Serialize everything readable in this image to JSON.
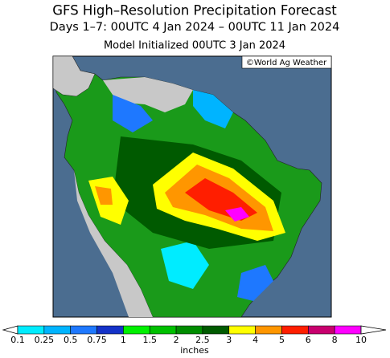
{
  "header": {
    "title": "GFS High–Resolution Precipitation Forecast",
    "subtitle": "Days 1–7: 00UTC 4 Jan 2024 – 00UTC 11 Jan 2024",
    "initialized": "Model Initialized 00UTC 3 Jan 2024"
  },
  "map": {
    "credit": "©World Ag Weather"
  },
  "colorbar": {
    "ticks": [
      "0.1",
      "0.25",
      "0.5",
      "0.75",
      "1",
      "1.5",
      "2",
      "2.5",
      "3",
      "4",
      "5",
      "6",
      "8",
      "10"
    ],
    "colors": [
      "#00ecff",
      "#00b4ff",
      "#1e78ff",
      "#1432c8",
      "#00f000",
      "#00c000",
      "#008c00",
      "#005a00",
      "#ffff00",
      "#ff9600",
      "#ff1e00",
      "#c8006e",
      "#ff00ff",
      "#a050dc"
    ],
    "units": "inches"
  }
}
